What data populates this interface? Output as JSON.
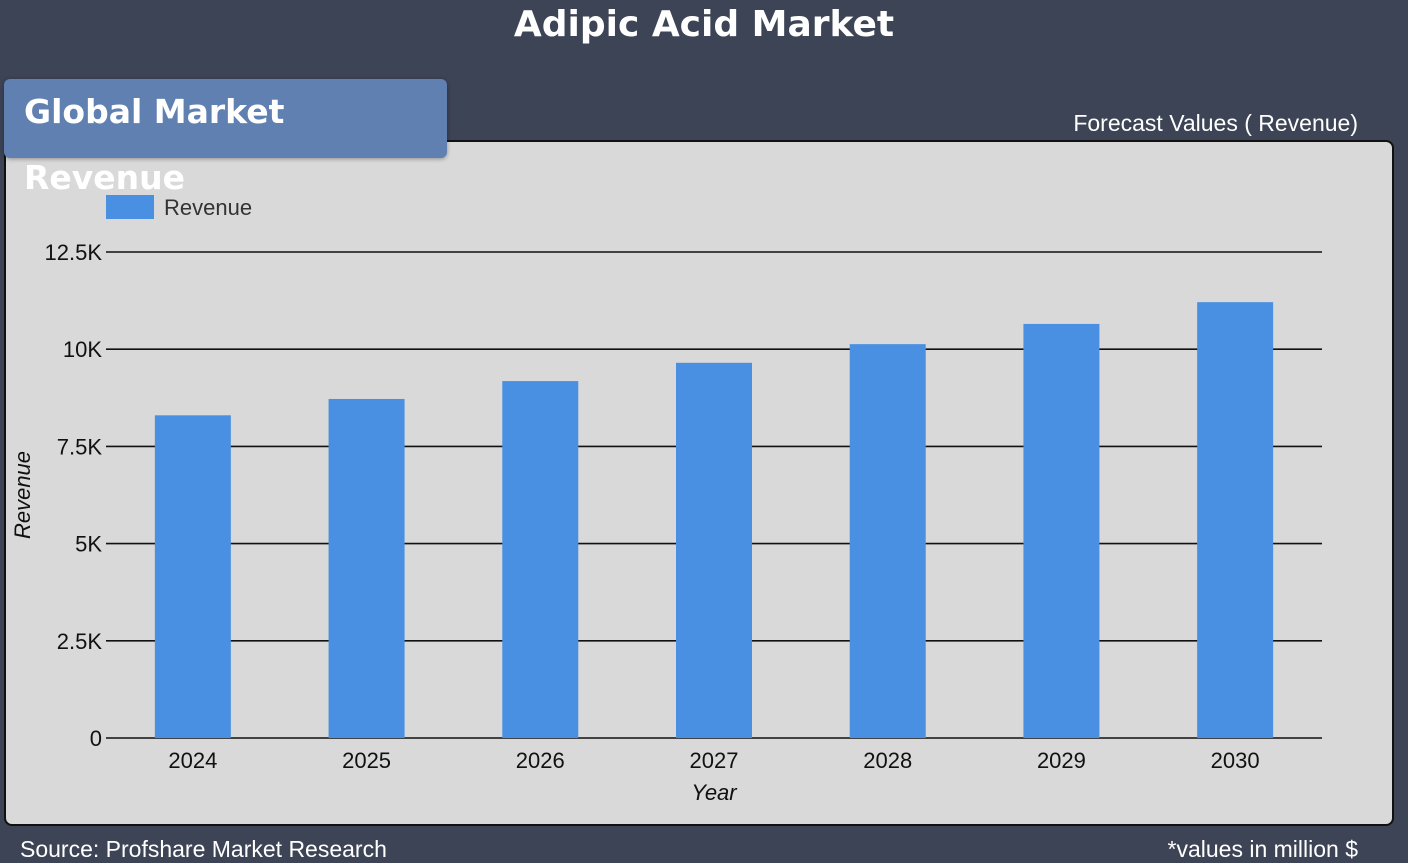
{
  "header": {
    "title": "Adipic Acid Market"
  },
  "badge": {
    "label": "Global Market Revenue"
  },
  "forecast_label": "Forecast Values ( Revenue)",
  "footer": {
    "source": "Source: Profshare Market Research",
    "note": "*values in million $"
  },
  "colors": {
    "background": "#3d4455",
    "panel": "#d9d9d9",
    "badge": "#6080b2",
    "bar": "#4a90e2"
  },
  "chart_data": {
    "type": "bar",
    "categories": [
      "2024",
      "2025",
      "2026",
      "2027",
      "2028",
      "2029",
      "2030"
    ],
    "series": [
      {
        "name": "Revenue",
        "values": [
          8300,
          8720,
          9180,
          9650,
          10130,
          10650,
          11210
        ]
      }
    ],
    "xlabel": "Year",
    "ylabel": "Revenue",
    "ylim": [
      0,
      12500
    ],
    "yticks": [
      0,
      2500,
      5000,
      7500,
      10000,
      12500
    ],
    "ytick_labels": [
      "0",
      "2.5K",
      "5K",
      "7.5K",
      "10K",
      "12.5K"
    ],
    "grid": true,
    "legend_position": "top-left"
  }
}
